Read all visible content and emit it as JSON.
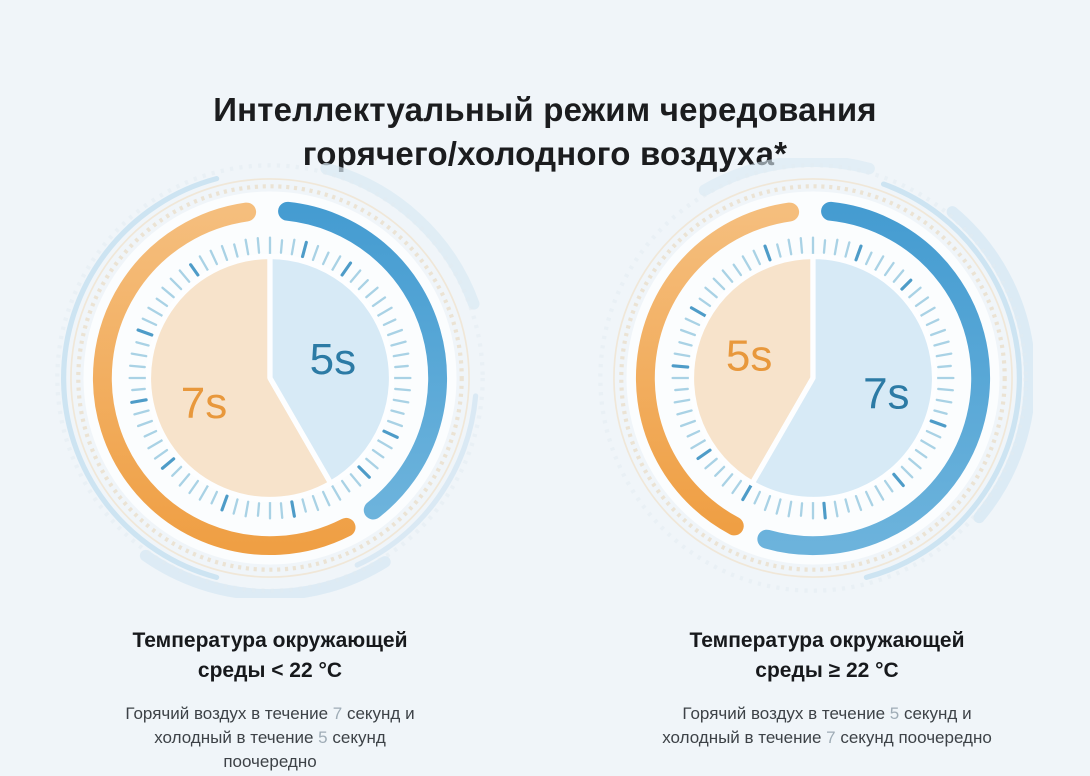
{
  "page": {
    "background_color": "#F0F5F9"
  },
  "title": {
    "line1": "Интеллектуальный режим чередования",
    "line2": "горячего/холодного воздуха*"
  },
  "columns": [
    {
      "heading": "Температура окружающей среды < 22 °C",
      "description_segments": [
        {
          "text": "Горячий воздух в течение "
        },
        {
          "text": "7",
          "muted": true
        },
        {
          "text": " секунд и холодный в течение "
        },
        {
          "text": "5",
          "muted": true
        },
        {
          "text": " секунд поочередно"
        }
      ]
    },
    {
      "heading": "Температура окружающей среды ≥ 22 °C",
      "description_segments": [
        {
          "text": "Горячий воздух в течение "
        },
        {
          "text": "5",
          "muted": true
        },
        {
          "text": " секунд и холодный в течение "
        },
        {
          "text": "7",
          "muted": true
        },
        {
          "text": " секунд поочередно"
        }
      ]
    }
  ],
  "chart_data": [
    {
      "type": "pie",
      "name": "mode-ambient-below-22c",
      "condition": "Температура окружающей среды < 22 °C",
      "units": "seconds",
      "slices": [
        {
          "name": "hot-air",
          "label": "7s",
          "value": 7,
          "fill": "#F7E3CB",
          "label_color": "#E8983C",
          "start_angle": 150,
          "end_angle": 360,
          "label_xy": [
            147,
            233
          ]
        },
        {
          "name": "cold-air",
          "label": "5s",
          "value": 5,
          "fill": "#D7EAF6",
          "label_color": "#2C7BA5",
          "start_angle": 0,
          "end_angle": 150,
          "label_xy": [
            270,
            191
          ]
        }
      ],
      "outer_rings": [
        {
          "name": "cold-ring",
          "start_angle": 6,
          "end_angle": 142,
          "color_top": "#459CD1",
          "color_bottom": "#6CB3DC"
        },
        {
          "name": "hot-ring",
          "start_angle": 153,
          "end_angle": 352,
          "color_top": "#F5BE7D",
          "color_bottom": "#EF9F44"
        }
      ]
    },
    {
      "type": "pie",
      "name": "mode-ambient-22c-and-above",
      "condition": "Температура окружающей среды ≥ 22 °C",
      "units": "seconds",
      "slices": [
        {
          "name": "hot-air",
          "label": "5s",
          "value": 5,
          "fill": "#F7E3CB",
          "label_color": "#E8983C",
          "start_angle": 210,
          "end_angle": 360,
          "label_xy": [
            149,
            188
          ]
        },
        {
          "name": "cold-air",
          "label": "7s",
          "value": 7,
          "fill": "#D7EAF6",
          "label_color": "#2C7BA5",
          "start_angle": 0,
          "end_angle": 210,
          "label_xy": [
            280,
            224
          ]
        }
      ],
      "outer_rings": [
        {
          "name": "cold-ring",
          "start_angle": 6,
          "end_angle": 196,
          "color_top": "#459CD1",
          "color_bottom": "#6CB3DC"
        },
        {
          "name": "hot-ring",
          "start_angle": 208,
          "end_angle": 352,
          "color_top": "#F5BE7D",
          "color_bottom": "#EF9F44"
        }
      ]
    }
  ]
}
